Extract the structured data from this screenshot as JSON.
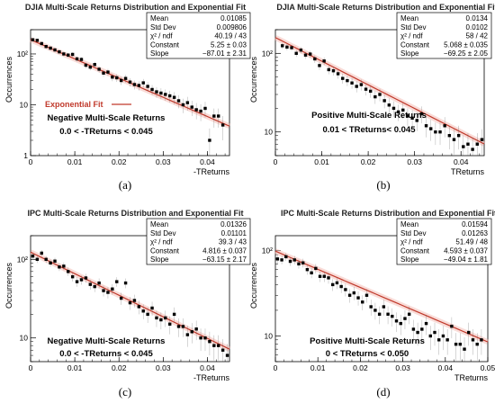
{
  "chart_data": [
    {
      "panel_label": "(a)",
      "type": "scatter",
      "title": "DJIA Multi-Scale Returns Distribution and Exponential Fit",
      "xlabel": "-TReturns",
      "ylabel": "Occurrences",
      "xlim": [
        0,
        0.045
      ],
      "ylim": [
        1,
        300
      ],
      "yscale": "log",
      "xticks": [
        "0",
        "0.01",
        "0.02",
        "0.03",
        "0.04"
      ],
      "yticks": [
        "1",
        "10",
        "10²"
      ],
      "grid": false,
      "stats": [
        [
          "Mean",
          "0.01085"
        ],
        [
          "Std Dev",
          "0.009806"
        ],
        [
          "χ² / ndf",
          "40.19 / 43"
        ],
        [
          "Constant",
          "5.25 ± 0.03"
        ],
        [
          "Slope",
          "−87.01 ± 2.31"
        ]
      ],
      "fit": {
        "constant": 5.25,
        "slope": -87.01,
        "color": "#c0392b"
      },
      "legend": {
        "label": "Exponential Fit",
        "position": "center-left"
      },
      "annotation": [
        "Negative Multi-Scale Returns",
        "0.0 < -TReturns < 0.045"
      ],
      "x": [
        0.0005,
        0.0015,
        0.0025,
        0.0035,
        0.0045,
        0.0055,
        0.0065,
        0.0075,
        0.0085,
        0.0095,
        0.0105,
        0.0115,
        0.0125,
        0.0135,
        0.0145,
        0.0155,
        0.0165,
        0.0175,
        0.0185,
        0.0195,
        0.0205,
        0.0215,
        0.0225,
        0.0235,
        0.0245,
        0.0255,
        0.0265,
        0.0275,
        0.0285,
        0.0295,
        0.0305,
        0.0315,
        0.0325,
        0.0335,
        0.0345,
        0.0355,
        0.0365,
        0.0375,
        0.0385,
        0.0395,
        0.0405,
        0.0415,
        0.0425,
        0.0435
      ],
      "y": [
        190,
        185,
        160,
        140,
        130,
        120,
        110,
        100,
        95,
        98,
        80,
        78,
        60,
        55,
        62,
        50,
        42,
        44,
        35,
        34,
        30,
        33,
        28,
        25,
        24,
        27,
        23,
        20,
        18,
        17,
        16,
        15,
        14,
        12,
        10,
        11,
        9,
        8,
        7.5,
        8.5,
        2,
        6,
        6,
        4
      ]
    },
    {
      "panel_label": "(b)",
      "type": "scatter",
      "title": "DJIA Multi-Scale Returns Distribution and Exponential Fit",
      "xlabel": "TReturns",
      "ylabel": "Occurrences",
      "xlim": [
        0,
        0.045
      ],
      "ylim": [
        5,
        200
      ],
      "yscale": "log",
      "xticks": [
        "0",
        "0.01",
        "0.02",
        "0.03",
        "0.04"
      ],
      "yticks": [
        "10",
        "10²"
      ],
      "grid": false,
      "stats": [
        [
          "Mean",
          "0.0134"
        ],
        [
          "Std Dev",
          "0.0102"
        ],
        [
          "χ² / ndf",
          "58 / 42"
        ],
        [
          "Constant",
          "5.068 ± 0.035"
        ],
        [
          "Slope",
          "−69.25 ± 2.05"
        ]
      ],
      "fit": {
        "constant": 5.068,
        "slope": -69.25,
        "color": "#c0392b"
      },
      "annotation": [
        "Positive Multi-Scale Returns",
        "0.01 < TReturns<  0.045"
      ],
      "x": [
        0.0015,
        0.0025,
        0.0035,
        0.0045,
        0.0055,
        0.0065,
        0.0075,
        0.0085,
        0.0095,
        0.0105,
        0.0115,
        0.0125,
        0.0135,
        0.0145,
        0.0155,
        0.0165,
        0.0175,
        0.0185,
        0.0195,
        0.0205,
        0.0215,
        0.0225,
        0.0235,
        0.0245,
        0.0255,
        0.0265,
        0.0275,
        0.0285,
        0.0295,
        0.0305,
        0.0315,
        0.0325,
        0.0335,
        0.0345,
        0.0355,
        0.0365,
        0.0375,
        0.0385,
        0.0395,
        0.0405,
        0.0415,
        0.0425,
        0.0435,
        0.0445
      ],
      "y": [
        125,
        120,
        118,
        100,
        110,
        95,
        98,
        85,
        70,
        80,
        62,
        60,
        55,
        48,
        45,
        42,
        38,
        40,
        35,
        33,
        28,
        30,
        25,
        22,
        20,
        18,
        19,
        16,
        15,
        14,
        17,
        12,
        11,
        10,
        10,
        12,
        9,
        8,
        9,
        6.5,
        7,
        6,
        7,
        8
      ]
    },
    {
      "panel_label": "(c)",
      "type": "scatter",
      "title": "IPC Multi-Scale Returns Distribution and Exponential Fit",
      "xlabel": "-TReturns",
      "ylabel": "Occurrences",
      "xlim": [
        0,
        0.045
      ],
      "ylim": [
        5,
        200
      ],
      "yscale": "log",
      "xticks": [
        "0",
        "0.01",
        "0.02",
        "0.03",
        "0.04"
      ],
      "yticks": [
        "10",
        "10²"
      ],
      "grid": false,
      "stats": [
        [
          "Mean",
          "0.01326"
        ],
        [
          "Std Dev",
          "0.01101"
        ],
        [
          "χ² / ndf",
          "39.3 / 43"
        ],
        [
          "Constant",
          "4.816 ± 0.037"
        ],
        [
          "Slope",
          "−63.15 ± 2.17"
        ]
      ],
      "fit": {
        "constant": 4.816,
        "slope": -63.15,
        "color": "#c0392b"
      },
      "annotation": [
        "Negative Multi-Scale Returns",
        "0.0 < -TReturns < 0.045"
      ],
      "x": [
        0.0005,
        0.0015,
        0.0025,
        0.0035,
        0.0045,
        0.0055,
        0.0065,
        0.0075,
        0.0085,
        0.0095,
        0.0105,
        0.0115,
        0.0125,
        0.0135,
        0.0145,
        0.0155,
        0.0165,
        0.0175,
        0.0185,
        0.0195,
        0.0205,
        0.0215,
        0.0225,
        0.0235,
        0.0245,
        0.0255,
        0.0265,
        0.0275,
        0.0285,
        0.0295,
        0.0305,
        0.0315,
        0.0325,
        0.0335,
        0.0345,
        0.0355,
        0.0365,
        0.0375,
        0.0385,
        0.0395,
        0.0405,
        0.0415,
        0.0425,
        0.0435,
        0.0445
      ],
      "y": [
        110,
        100,
        120,
        100,
        90,
        95,
        80,
        82,
        70,
        60,
        52,
        55,
        58,
        48,
        45,
        50,
        40,
        38,
        42,
        52,
        32,
        50,
        28,
        30,
        25,
        22,
        20,
        24,
        18,
        17,
        18,
        15,
        20,
        14,
        14,
        11,
        12,
        13,
        10,
        10,
        9,
        8,
        8,
        7,
        6
      ]
    },
    {
      "panel_label": "(d)",
      "type": "scatter",
      "title": "IPC Multi-Scale Returns Distribution and Exponential Fit",
      "xlabel": "TReturns",
      "ylabel": "Occurrences",
      "xlim": [
        0,
        0.05
      ],
      "ylim": [
        5,
        150
      ],
      "yscale": "log",
      "xticks": [
        "0",
        "0.01",
        "0.02",
        "0.03",
        "0.04",
        "0.05"
      ],
      "yticks": [
        "10",
        "10²"
      ],
      "grid": false,
      "stats": [
        [
          "Mean",
          "0.01594"
        ],
        [
          "Std Dev",
          "0.01263"
        ],
        [
          "χ² / ndf",
          "51.49 / 48"
        ],
        [
          "Constant",
          "4.593 ± 0.037"
        ],
        [
          "Slope",
          "−49.04 ± 1.81"
        ]
      ],
      "fit": {
        "constant": 4.593,
        "slope": -49.04,
        "color": "#c0392b"
      },
      "annotation": [
        "Positive Multi-Scale Returns",
        "0 < TReturns < 0.050"
      ],
      "x": [
        0.0005,
        0.0015,
        0.0025,
        0.0035,
        0.0045,
        0.0055,
        0.0065,
        0.0075,
        0.0085,
        0.0095,
        0.0105,
        0.0115,
        0.0125,
        0.0135,
        0.0145,
        0.0155,
        0.0165,
        0.0175,
        0.0185,
        0.0195,
        0.0205,
        0.0215,
        0.0225,
        0.0235,
        0.0245,
        0.0255,
        0.0265,
        0.0275,
        0.0285,
        0.0295,
        0.0305,
        0.0315,
        0.0325,
        0.0335,
        0.0345,
        0.0355,
        0.0365,
        0.0375,
        0.0385,
        0.0395,
        0.0405,
        0.0415,
        0.0425,
        0.0435,
        0.0445,
        0.0455,
        0.0465,
        0.0475,
        0.0485
      ],
      "y": [
        80,
        78,
        85,
        75,
        78,
        70,
        72,
        60,
        55,
        62,
        50,
        50,
        48,
        40,
        42,
        38,
        35,
        30,
        32,
        28,
        25,
        30,
        22,
        20,
        18,
        22,
        18,
        17,
        15,
        14,
        16,
        18,
        12,
        11,
        12,
        14,
        10,
        11,
        9,
        10,
        9,
        13,
        8,
        8,
        7,
        11,
        9,
        8,
        9
      ]
    }
  ]
}
